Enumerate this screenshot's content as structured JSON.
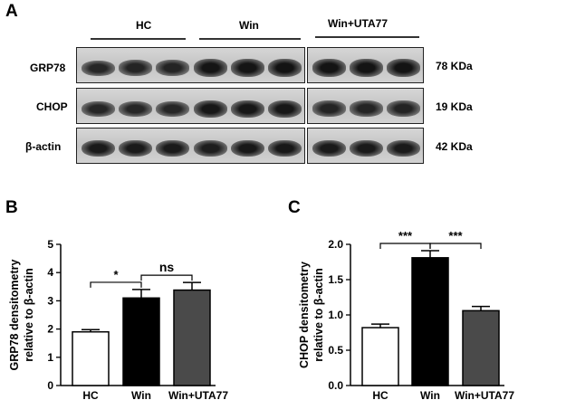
{
  "panel_a": {
    "letter": "A",
    "groups": [
      "HC",
      "Win",
      "Win+UTA77"
    ],
    "rows": [
      {
        "label": "GRP78",
        "size": "78 KDa",
        "intensity": [
          0.7,
          0.72,
          0.72,
          0.92,
          0.92,
          0.95,
          0.93,
          0.93,
          0.95
        ]
      },
      {
        "label": "CHOP",
        "size": "19 KDa",
        "intensity": [
          0.7,
          0.7,
          0.7,
          0.9,
          0.9,
          0.9,
          0.72,
          0.72,
          0.74
        ]
      },
      {
        "label": "β-actin",
        "size": "42 KDa",
        "intensity": [
          0.85,
          0.85,
          0.85,
          0.8,
          0.88,
          0.88,
          0.85,
          0.85,
          0.85
        ]
      }
    ]
  },
  "chart_data": [
    {
      "panel": "B",
      "type": "bar",
      "categories": [
        "HC",
        "Win",
        "Win+UTA77"
      ],
      "values": [
        1.9,
        3.1,
        3.38
      ],
      "errors": [
        0.08,
        0.3,
        0.27
      ],
      "colors": [
        "#ffffff",
        "#000000",
        "#4a4a4a"
      ],
      "ylabel": "GRP78 densitometry\nrelative to β-actin",
      "ylim": [
        0,
        5
      ],
      "yticks": [
        "0",
        "1",
        "2",
        "3",
        "4",
        "5"
      ],
      "significance": [
        {
          "from": 0,
          "to": 1,
          "label": "*"
        },
        {
          "from": 1,
          "to": 2,
          "label": "ns"
        }
      ]
    },
    {
      "panel": "C",
      "type": "bar",
      "categories": [
        "HC",
        "Win",
        "Win+UTA77"
      ],
      "values": [
        0.82,
        1.81,
        1.06
      ],
      "errors": [
        0.05,
        0.1,
        0.06
      ],
      "colors": [
        "#ffffff",
        "#000000",
        "#4a4a4a"
      ],
      "ylabel": "CHOP densitometry\nrelative to β-actin",
      "ylim": [
        0,
        2.0
      ],
      "yticks": [
        "0.0",
        "0.5",
        "1.0",
        "1.5",
        "2.0"
      ],
      "significance": [
        {
          "from": 0,
          "to": 1,
          "label": "***"
        },
        {
          "from": 1,
          "to": 2,
          "label": "***"
        }
      ]
    }
  ]
}
